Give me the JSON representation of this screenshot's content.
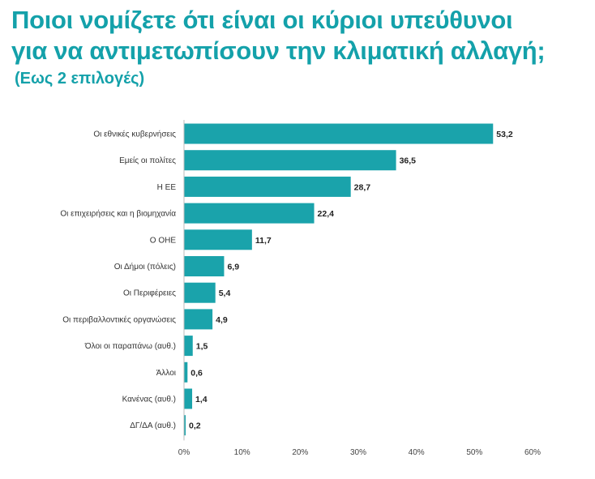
{
  "chart_data": {
    "type": "bar",
    "orientation": "horizontal",
    "title_line1": "Ποιοι νομίζετε ότι είναι οι κύριοι υπεύθυνοι",
    "title_line2": "για να αντιμετωπίσουν την κλιματική αλλαγή;",
    "subtitle": "(Εως 2 επιλογές)",
    "categories": [
      "Οι εθνικές κυβερνήσεις",
      "Εμείς οι πολίτες",
      "Η ΕΕ",
      "Οι επιχειρήσεις και η βιομηχανία",
      "Ο ΟΗΕ",
      "Οι Δήμοι (πόλεις)",
      "Οι Περιφέρειες",
      "Οι περιβαλλοντικές οργανώσεις",
      "Όλοι οι παραπάνω (αυθ.)",
      "Άλλοι",
      "Κανένας (αυθ.)",
      "ΔΓ/ΔΑ (αυθ.)"
    ],
    "values": [
      53.2,
      36.5,
      28.7,
      22.4,
      11.7,
      6.9,
      5.4,
      4.9,
      1.5,
      0.6,
      1.4,
      0.2
    ],
    "value_labels": [
      "53,2",
      "36,5",
      "28,7",
      "22,4",
      "11,7",
      "6,9",
      "5,4",
      "4,9",
      "1,5",
      "0,6",
      "1,4",
      "0,2"
    ],
    "xlim": [
      0,
      60
    ],
    "xticks": [
      "0%",
      "10%",
      "20%",
      "30%",
      "40%",
      "50%",
      "60%"
    ],
    "xlabel": "",
    "ylabel": "",
    "bar_color": "#1aa3ab",
    "grid": false
  }
}
